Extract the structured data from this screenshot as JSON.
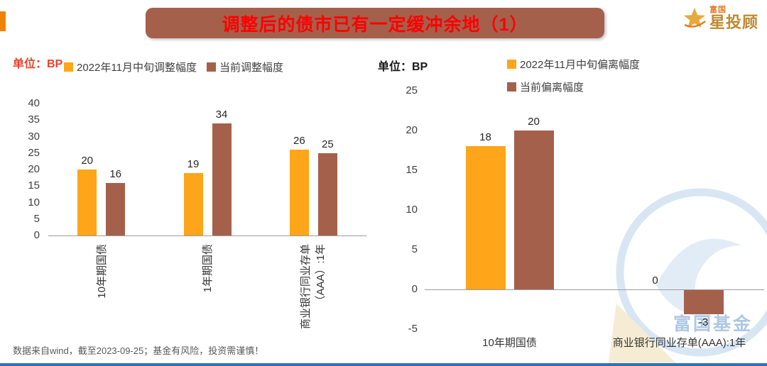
{
  "slide": {
    "title": "调整后的债市已有一定缓冲余地（1）",
    "footnote": "数据来自wind，截至2023-09-25；基金有风险，投资需谨慎！",
    "logo": {
      "brand_small": "富国",
      "brand_large": "星投顾"
    },
    "watermark_text": "富国基金"
  },
  "colors": {
    "banner_brown": "#A5604C",
    "title_red": "#FF0000",
    "series_orange": "#FFA519",
    "series_brown": "#A5604C",
    "unit_left_red": "#E8432B",
    "watermark_blue": "#D8E6F4",
    "watermark_text_blue": "#AEC8E4",
    "bottom_line_blue": "#2E74B5",
    "logo_gold": "#BE8A2F"
  },
  "chart_data": [
    {
      "type": "bar",
      "unit_label": "单位：BP",
      "categories": [
        "10年期国债",
        "1年期国债",
        "商业银行同业存单\n（AAA）:1年"
      ],
      "series": [
        {
          "name": "2022年11月中旬调整幅度",
          "color": "#FFA519",
          "values": [
            20,
            19,
            26
          ]
        },
        {
          "name": "当前调整幅度",
          "color": "#A5604C",
          "values": [
            16,
            34,
            25
          ]
        }
      ],
      "ylim": [
        0,
        40
      ],
      "yticks": [
        40,
        35,
        30,
        25,
        20,
        15,
        10,
        5,
        0
      ],
      "legend_position": "top",
      "grid": false,
      "value_labels": true
    },
    {
      "type": "bar",
      "unit_label": "单位：BP",
      "categories": [
        "10年期国债",
        "商业银行同业存单(AAA):1年"
      ],
      "series": [
        {
          "name": "2022年11月中旬偏离幅度",
          "color": "#FFA519",
          "values": [
            18,
            0
          ]
        },
        {
          "name": "当前偏离幅度",
          "color": "#A5604C",
          "values": [
            20,
            -3
          ]
        }
      ],
      "ylim": [
        -5,
        25
      ],
      "yticks": [
        25,
        20,
        15,
        10,
        5,
        0,
        -5
      ],
      "legend_position": "top-right",
      "grid": false,
      "value_labels": true
    }
  ]
}
